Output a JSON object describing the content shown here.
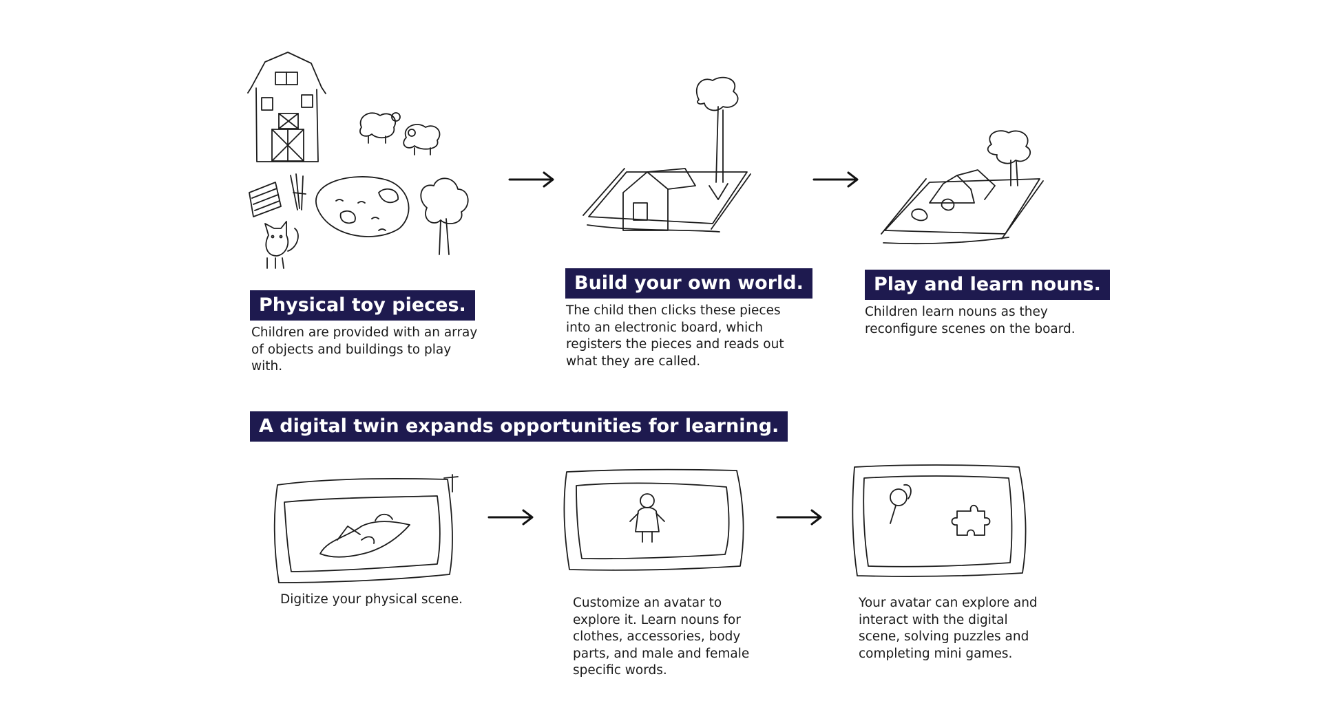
{
  "top_steps": [
    {
      "title": "Physical toy pieces.",
      "description": "Children are provided with an array of objects and buildings to play with."
    },
    {
      "title": "Build your own world.",
      "description": "The child then clicks these pieces into an electronic board, which registers the pieces and reads out what they are called."
    },
    {
      "title": "Play and learn nouns.",
      "description": "Children learn nouns as they reconfigure scenes on the board."
    }
  ],
  "section_title": "A digital twin expands opportunities for learning.",
  "bottom_steps": [
    {
      "description": "Digitize your physical scene."
    },
    {
      "description": "Customize an avatar to explore it. Learn nouns for clothes, accessories, body parts, and male and female specific words."
    },
    {
      "description": "Your avatar can explore and interact with the digital scene, solving puzzles and completing mini games."
    }
  ],
  "icons": {
    "sketch_toys": "toy-pieces-sketch",
    "sketch_board": "board-with-house-sketch",
    "sketch_scene": "board-scene-sketch",
    "sketch_digitize": "tablet-scene-sketch",
    "sketch_avatar": "tablet-avatar-sketch",
    "sketch_games": "tablet-games-sketch",
    "arrow": "right-arrow-icon"
  },
  "colors": {
    "label_bg": "#1e1a4f",
    "label_text": "#ffffff",
    "ink": "#1c1c1c"
  }
}
